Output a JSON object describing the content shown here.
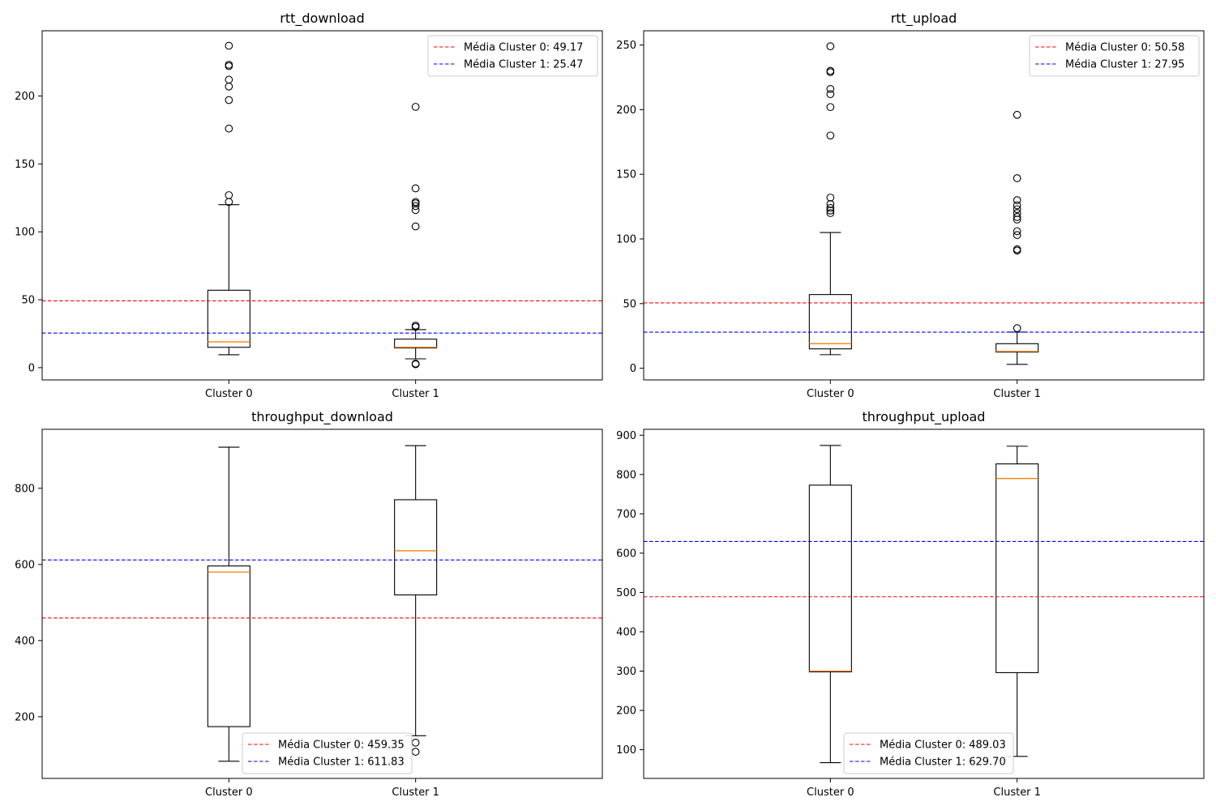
{
  "chart_data": [
    {
      "type": "boxplot",
      "title": "rtt_download",
      "categories": [
        "Cluster 0",
        "Cluster 1"
      ],
      "ylim": [
        -9,
        248
      ],
      "yticks": [
        0,
        50,
        100,
        150,
        200
      ],
      "grid": false,
      "legend_position": "upper right",
      "boxes": [
        {
          "name": "Cluster 0",
          "whisker_low": 9.5,
          "q1": 15,
          "median": 19,
          "q3": 57,
          "whisker_high": 120,
          "fliers": [
            122,
            127,
            176,
            197,
            207,
            212,
            222,
            223,
            237
          ]
        },
        {
          "name": "Cluster 1",
          "whisker_low": 6.5,
          "q1": 14.5,
          "median": 15,
          "q3": 21,
          "whisker_high": 28,
          "fliers": [
            2.5,
            3,
            30,
            31,
            104,
            116,
            119,
            121,
            122,
            132,
            192
          ]
        }
      ],
      "mean_lines": [
        {
          "label": "Média Cluster 0: 49.17",
          "value": 49.17,
          "color": "#ff0000"
        },
        {
          "label": "Média Cluster 1: 25.47",
          "value": 25.47,
          "color": "#0000ff"
        }
      ]
    },
    {
      "type": "boxplot",
      "title": "rtt_upload",
      "categories": [
        "Cluster 0",
        "Cluster 1"
      ],
      "ylim": [
        -9,
        261
      ],
      "yticks": [
        0,
        50,
        100,
        150,
        200,
        250
      ],
      "grid": false,
      "legend_position": "upper right",
      "boxes": [
        {
          "name": "Cluster 0",
          "whisker_low": 10.5,
          "q1": 15,
          "median": 19,
          "q3": 57,
          "whisker_high": 105,
          "fliers": [
            120,
            122,
            124,
            127,
            132,
            180,
            202,
            212,
            216,
            229,
            230,
            249
          ]
        },
        {
          "name": "Cluster 1",
          "whisker_low": 3,
          "q1": 12.5,
          "median": 13,
          "q3": 19,
          "whisker_high": 28,
          "fliers": [
            31,
            91,
            92,
            103,
            106,
            115,
            117,
            120,
            123,
            126,
            130,
            147,
            196
          ]
        }
      ],
      "mean_lines": [
        {
          "label": "Média Cluster 0: 50.58",
          "value": 50.58,
          "color": "#ff0000"
        },
        {
          "label": "Média Cluster 1: 27.95",
          "value": 27.95,
          "color": "#0000ff"
        }
      ]
    },
    {
      "type": "boxplot",
      "title": "throughput_download",
      "categories": [
        "Cluster 0",
        "Cluster 1"
      ],
      "ylim": [
        38,
        955
      ],
      "yticks": [
        200,
        400,
        600,
        800
      ],
      "grid": false,
      "legend_position": "lower center",
      "boxes": [
        {
          "name": "Cluster 0",
          "whisker_low": 83,
          "q1": 174,
          "median": 580,
          "q3": 596,
          "whisker_high": 908,
          "fliers": []
        },
        {
          "name": "Cluster 1",
          "whisker_low": 150,
          "q1": 520,
          "median": 636,
          "q3": 770,
          "whisker_high": 912,
          "fliers": [
            108,
            132
          ]
        }
      ],
      "mean_lines": [
        {
          "label": "Média Cluster 0: 459.35",
          "value": 459.35,
          "color": "#ff0000"
        },
        {
          "label": "Média Cluster 1: 611.83",
          "value": 611.83,
          "color": "#0000ff"
        }
      ]
    },
    {
      "type": "boxplot",
      "title": "throughput_upload",
      "categories": [
        "Cluster 0",
        "Cluster 1"
      ],
      "ylim": [
        27,
        915
      ],
      "yticks": [
        100,
        200,
        300,
        400,
        500,
        600,
        700,
        800,
        900
      ],
      "grid": false,
      "legend_position": "lower center",
      "boxes": [
        {
          "name": "Cluster 0",
          "whisker_low": 67,
          "q1": 298,
          "median": 300,
          "q3": 773,
          "whisker_high": 874,
          "fliers": []
        },
        {
          "name": "Cluster 1",
          "whisker_low": 83,
          "q1": 296,
          "median": 790,
          "q3": 827,
          "whisker_high": 872,
          "fliers": []
        }
      ],
      "mean_lines": [
        {
          "label": "Média Cluster 0: 489.03",
          "value": 489.03,
          "color": "#ff0000"
        },
        {
          "label": "Média Cluster 1: 629.70",
          "value": 629.7,
          "color": "#0000ff"
        }
      ]
    }
  ],
  "colors": {
    "box_edge": "#000000",
    "median": "#ff7f0e",
    "mean_cluster_0": "#ff0000",
    "mean_cluster_1": "#0000ff"
  }
}
